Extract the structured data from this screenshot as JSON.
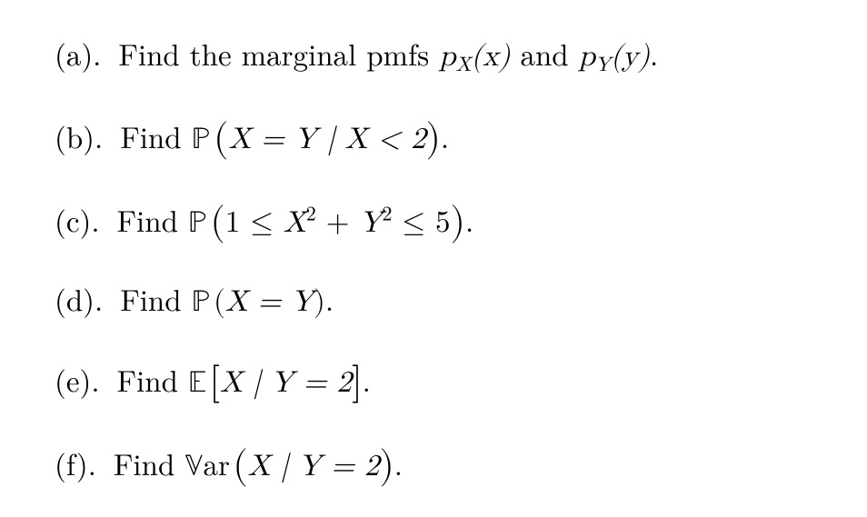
{
  "font": {
    "family_serif": "Latin Modern Roman / Computer Modern",
    "size_pt": 33,
    "color": "#000000",
    "background": "#ffffff"
  },
  "items": [
    {
      "label": "(a).",
      "text_prefix": "Find the marginal pmfs ",
      "expr_sub1_base": "p",
      "expr_sub1_sub": "X",
      "expr_sub1_arg": "(x)",
      "mid_text": " and ",
      "expr_sub2_base": "p",
      "expr_sub2_sub": "Y",
      "expr_sub2_arg": "(y)",
      "text_suffix": "."
    },
    {
      "label": "(b).",
      "text_prefix": "Find ",
      "bb_op": "ℙ",
      "lparen": "(",
      "expr": "X = Y | X < 2",
      "rparen": ")",
      "text_suffix": "."
    },
    {
      "label": "(c).",
      "text_prefix": "Find ",
      "bb_op": "ℙ",
      "lparen": "(",
      "one": "1 ≤ ",
      "Xb": "X",
      "sq1": "2",
      "plus": " + ",
      "Yb": "Y",
      "sq2": "2",
      "le5": " ≤ 5",
      "rparen": ")",
      "text_suffix": "."
    },
    {
      "label": "(d).",
      "text_prefix": "Find ",
      "bb_op": "ℙ",
      "lparen": "(",
      "expr": "X = Y",
      "rparen": ")",
      "text_suffix": "."
    },
    {
      "label": "(e).",
      "text_prefix": "Find ",
      "bb_op": "𝔼",
      "lparen": "[",
      "expr": "X | Y = 2",
      "rparen": "]",
      "text_suffix": "."
    },
    {
      "label": "(f).",
      "text_prefix": "Find ",
      "var_op": "𝕍ar",
      "lparen": "(",
      "expr": "X | Y = 2",
      "rparen": ")",
      "text_suffix": "."
    }
  ]
}
